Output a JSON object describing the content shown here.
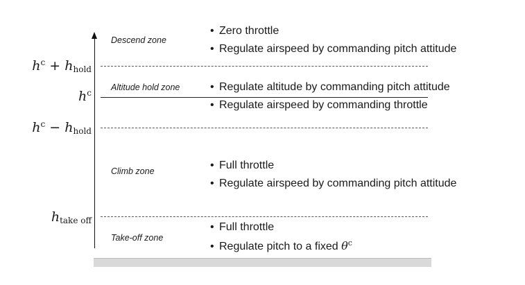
{
  "zones": {
    "descend": {
      "label": "Descend zone",
      "bullets": [
        "Zero throttle",
        "Regulate airspeed by commanding pitch attitude"
      ]
    },
    "altitude_hold": {
      "label": "Altitude hold zone",
      "bullets": [
        "Regulate altitude by commanding pitch attitude",
        "Regulate airspeed by commanding throttle"
      ]
    },
    "climb": {
      "label": "Climb zone",
      "bullets": [
        "Full throttle",
        "Regulate airspeed by commanding pitch attitude"
      ]
    },
    "takeoff": {
      "label": "Take-off zone",
      "bullets": [
        "Full throttle",
        "Regulate pitch to a fixed "
      ]
    }
  },
  "levels": {
    "h_plus": {
      "base": "h",
      "sup": "c",
      "op": " + ",
      "base2": "h",
      "sub2": "hold"
    },
    "h_c": {
      "base": "h",
      "sup": "c"
    },
    "h_minus": {
      "base": "h",
      "sup": "c",
      "op": " − ",
      "base2": "h",
      "sub2": "hold"
    },
    "h_takeoff": {
      "base": "h",
      "sub": "take off"
    }
  },
  "theta_symbol": {
    "base": "θ",
    "sup": "c"
  },
  "bullet_glyph": "•"
}
